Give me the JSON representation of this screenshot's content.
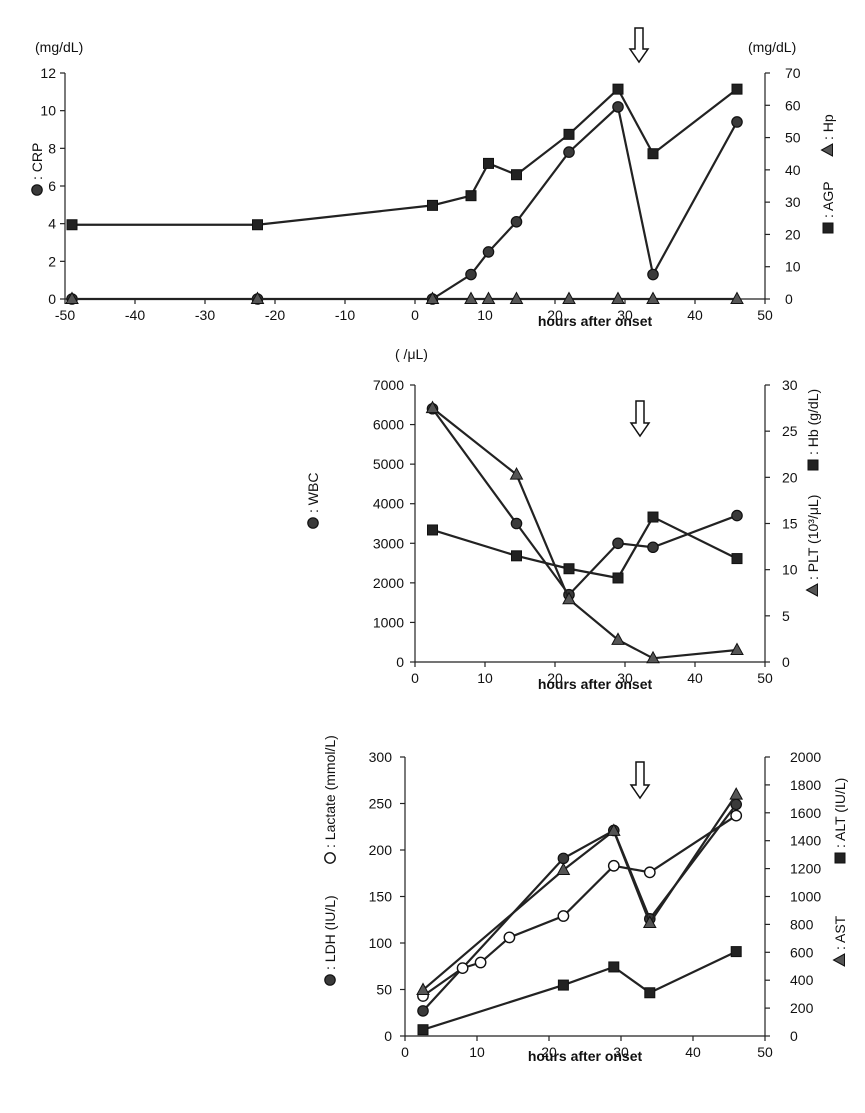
{
  "chart_data": [
    {
      "id": "crp-agp-hp",
      "type": "line",
      "xlabel": "hours after onset",
      "xlim": [
        -50,
        50
      ],
      "xticks": [
        -50,
        -40,
        -30,
        -20,
        -10,
        0,
        10,
        20,
        30,
        40,
        50
      ],
      "left_axis": {
        "unit": "(mg/dL)",
        "ylim": [
          0,
          12
        ],
        "ticks": [
          0,
          2,
          4,
          6,
          8,
          10,
          12
        ]
      },
      "right_axis": {
        "unit": "(mg/dL)",
        "ylim": [
          0,
          70
        ],
        "ticks": [
          0,
          10,
          20,
          30,
          40,
          50,
          60,
          70
        ]
      },
      "arrow_x": 32,
      "left_labels": [
        {
          "marker": "circle",
          "text": ": CRP"
        }
      ],
      "right_labels": [
        {
          "marker": "triangle",
          "text": ": Hp"
        },
        {
          "marker": "square",
          "text": ": AGP"
        }
      ],
      "series": [
        {
          "name": "CRP",
          "axis": "left",
          "marker": "circle",
          "connect": "partial",
          "x": [
            -49,
            -22.5,
            2.5,
            8,
            10.5,
            14.5,
            22,
            29,
            34,
            46
          ],
          "y": [
            0,
            0,
            0,
            1.3,
            2.5,
            4.1,
            7.8,
            10.2,
            1.3,
            9.4
          ]
        },
        {
          "name": "AGP",
          "axis": "right",
          "marker": "square",
          "connect": "all",
          "x": [
            -49,
            -22.5,
            2.5,
            8,
            10.5,
            14.5,
            22,
            29,
            34,
            46
          ],
          "y": [
            23,
            23,
            29,
            32,
            42,
            38.5,
            51,
            65,
            45,
            65
          ]
        },
        {
          "name": "Hp",
          "axis": "right",
          "marker": "triangle",
          "connect": "all",
          "x": [
            -49,
            -22.5,
            2.5,
            8,
            10.5,
            14.5,
            22,
            29,
            34,
            46
          ],
          "y": [
            0,
            0,
            0,
            0,
            0,
            0,
            0,
            0,
            0,
            0
          ]
        }
      ]
    },
    {
      "id": "wbc-hb-plt",
      "type": "line",
      "xlabel": "hours after onset",
      "xlim": [
        0,
        50
      ],
      "xticks": [
        0,
        10,
        20,
        30,
        40,
        50
      ],
      "left_axis": {
        "unit": "( /μL)",
        "ylim": [
          0,
          7000
        ],
        "ticks": [
          0,
          1000,
          2000,
          3000,
          4000,
          5000,
          6000,
          7000
        ]
      },
      "right_axis": {
        "unit": "",
        "ylim": [
          0,
          30
        ],
        "ticks": [
          0,
          5,
          10,
          15,
          20,
          25,
          30
        ]
      },
      "arrow_x": 32,
      "left_labels": [
        {
          "marker": "circle",
          "text": ": WBC"
        }
      ],
      "right_labels": [
        {
          "marker": "square",
          "text": ": Hb (g/dL)"
        },
        {
          "marker": "triangle",
          "text": ": PLT (10³/μL)"
        }
      ],
      "series": [
        {
          "name": "WBC",
          "axis": "left",
          "marker": "circle",
          "connect": "all",
          "x": [
            2.5,
            14.5,
            22,
            29,
            34,
            46
          ],
          "y": [
            6400,
            3500,
            1700,
            3000,
            2900,
            3700
          ]
        },
        {
          "name": "Hb (g/dL)",
          "axis": "right",
          "marker": "square",
          "connect": "all",
          "x": [
            2.5,
            14.5,
            22,
            29,
            34,
            46
          ],
          "y": [
            14.3,
            11.5,
            10.1,
            9.1,
            15.7,
            11.2
          ]
        },
        {
          "name": "PLT (10³/μL)",
          "axis": "right",
          "marker": "triangle",
          "connect": "all",
          "x": [
            2.5,
            14.5,
            22,
            29,
            34,
            46
          ],
          "y": [
            27.5,
            20.3,
            6.8,
            2.4,
            0.4,
            1.3
          ]
        }
      ]
    },
    {
      "id": "ldh-lactate-alt-ast",
      "type": "line",
      "xlabel": "hours after onset",
      "xlim": [
        0,
        50
      ],
      "xticks": [
        0,
        10,
        20,
        30,
        40,
        50
      ],
      "left_axis": {
        "unit": "",
        "ylim": [
          0,
          300
        ],
        "ticks": [
          0,
          50,
          100,
          150,
          200,
          250,
          300
        ]
      },
      "right_axis": {
        "unit": "",
        "ylim": [
          0,
          2000
        ],
        "ticks": [
          0,
          200,
          400,
          600,
          800,
          1000,
          1200,
          1400,
          1600,
          1800,
          2000
        ]
      },
      "arrow_x": 32,
      "left_labels": [
        {
          "marker": "circle",
          "text": ": LDH (IU/L)"
        },
        {
          "marker": "open-circle",
          "text": ": Lactate (mmol/L)"
        }
      ],
      "right_labels": [
        {
          "marker": "triangle",
          "text": ": AST"
        },
        {
          "marker": "square",
          "text": ": ALT (IU/L)"
        }
      ],
      "series": [
        {
          "name": "LDH (IU/L)",
          "axis": "left",
          "marker": "circle",
          "connect": "all",
          "x": [
            2.5,
            22,
            29,
            34,
            46
          ],
          "y": [
            27,
            191,
            221,
            126,
            249
          ]
        },
        {
          "name": "Lactate (mmol/L)",
          "axis": "left",
          "marker": "open-circle",
          "connect": "all",
          "x": [
            2.5,
            8,
            10.5,
            14.5,
            22,
            29,
            34,
            46
          ],
          "y": [
            43,
            73,
            79,
            106,
            129,
            183,
            176,
            237
          ]
        },
        {
          "name": "AST",
          "axis": "right",
          "marker": "triangle",
          "connect": "all",
          "x": [
            2.5,
            22,
            29,
            34,
            46
          ],
          "y": [
            330,
            1190,
            1470,
            810,
            1730
          ]
        },
        {
          "name": "ALT (IU/L)",
          "axis": "right",
          "marker": "square",
          "connect": "all",
          "x": [
            2.5,
            22,
            29,
            34,
            46
          ],
          "y": [
            45,
            365,
            495,
            310,
            605
          ]
        }
      ]
    }
  ]
}
